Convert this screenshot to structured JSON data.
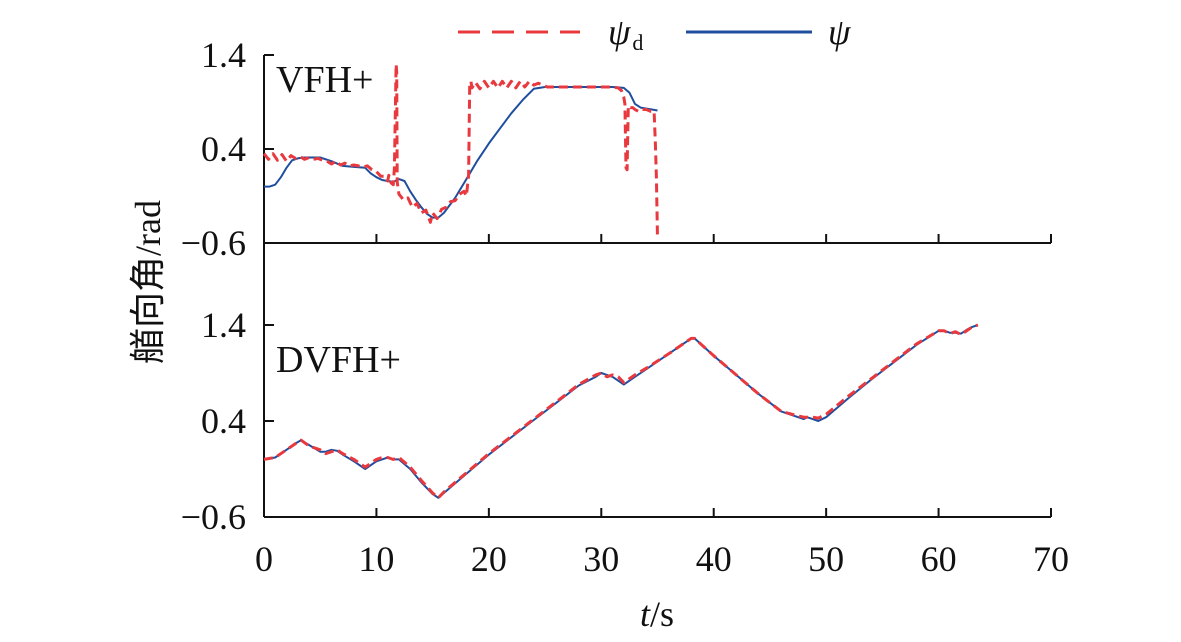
{
  "chart_data": [
    {
      "type": "line",
      "panel_label": "VFH+",
      "xlim": [
        0,
        70
      ],
      "ylim": [
        -0.6,
        1.4
      ],
      "yticks": [
        1.4,
        0.4,
        -0.6
      ],
      "ytick_labels": [
        "1.4",
        "0.4",
        "−0.6"
      ],
      "series": [
        {
          "name": "ψd",
          "style": "dashed",
          "color": "#e8393f",
          "x": [
            0,
            0.4,
            0.8,
            1.2,
            1.6,
            2.0,
            2.4,
            2.8,
            3.2,
            3.6,
            4.0,
            4.4,
            4.8,
            5.2,
            5.6,
            6.0,
            6.4,
            6.8,
            7.2,
            7.6,
            8.0,
            8.4,
            8.8,
            9.2,
            9.6,
            10.0,
            10.4,
            10.8,
            11.0,
            11.1,
            11.3,
            11.5,
            11.6,
            11.7,
            11.75,
            11.8,
            11.85,
            12.0,
            12.4,
            12.8,
            13.2,
            13.6,
            14.0,
            14.4,
            14.8,
            15.0,
            15.4,
            15.8,
            16.2,
            16.6,
            17.0,
            17.4,
            17.8,
            18.0,
            18.2,
            18.3,
            18.4,
            18.5,
            18.8,
            19.2,
            19.6,
            20.0,
            20.4,
            20.8,
            21.2,
            21.6,
            22.0,
            22.4,
            22.8,
            23.2,
            23.6,
            24.0,
            24.4,
            24.8,
            25.2,
            26,
            27,
            28,
            29,
            30,
            31,
            31.5,
            31.8,
            32.0,
            32.1,
            32.2,
            32.3,
            32.4,
            32.6,
            32.8,
            33.0,
            33.3,
            33.6,
            34.0,
            34.4,
            34.7,
            34.8,
            34.9,
            35.0
          ],
          "y": [
            0.35,
            0.29,
            0.35,
            0.28,
            0.34,
            0.27,
            0.33,
            0.3,
            0.32,
            0.29,
            0.31,
            0.29,
            0.3,
            0.28,
            0.27,
            0.24,
            0.27,
            0.23,
            0.25,
            0.22,
            0.23,
            0.22,
            0.21,
            0.22,
            0.18,
            0.16,
            0.11,
            0.11,
            0.06,
            0.12,
            0.04,
            0.02,
            0.2,
            0.9,
            1.3,
            1.22,
            0.05,
            -0.08,
            -0.14,
            -0.12,
            -0.22,
            -0.18,
            -0.28,
            -0.25,
            -0.38,
            -0.28,
            -0.34,
            -0.24,
            -0.22,
            -0.16,
            -0.15,
            -0.08,
            -0.05,
            -0.1,
            0.12,
            1.08,
            1.12,
            1.05,
            1.11,
            1.04,
            1.12,
            1.05,
            1.12,
            1.05,
            1.12,
            1.05,
            1.12,
            1.05,
            1.12,
            1.06,
            1.12,
            1.08,
            1.1,
            1.08,
            1.06,
            1.06,
            1.06,
            1.06,
            1.06,
            1.06,
            1.06,
            1.05,
            1.02,
            0.95,
            0.88,
            0.2,
            0.18,
            0.86,
            0.84,
            0.84,
            0.82,
            0.8,
            0.82,
            0.82,
            0.8,
            0.8,
            0.48,
            0.1,
            -0.55
          ]
        },
        {
          "name": "ψ",
          "style": "solid",
          "color": "#1f4e9f",
          "x": [
            0,
            0.5,
            1.0,
            1.5,
            2.0,
            2.5,
            3.0,
            3.5,
            4.0,
            5.0,
            6.0,
            7.0,
            8.0,
            9.0,
            9.5,
            10.0,
            10.5,
            11.0,
            11.5,
            12.0,
            12.5,
            13.0,
            13.5,
            14.0,
            14.5,
            15.0,
            15.5,
            16.0,
            17.0,
            18.0,
            19.0,
            20.0,
            21.0,
            22.0,
            23.0,
            24.0,
            25.0,
            26.0,
            27.0,
            28.0,
            29.0,
            30.0,
            31.0,
            32.0,
            32.5,
            33.0,
            33.5,
            34.0,
            34.5,
            35.0
          ],
          "y": [
            0.0,
            0.0,
            0.02,
            0.1,
            0.2,
            0.28,
            0.3,
            0.31,
            0.31,
            0.31,
            0.27,
            0.22,
            0.21,
            0.2,
            0.14,
            0.1,
            0.07,
            0.06,
            0.05,
            0.08,
            0.06,
            -0.05,
            -0.14,
            -0.22,
            -0.29,
            -0.33,
            -0.33,
            -0.28,
            -0.12,
            0.08,
            0.28,
            0.46,
            0.62,
            0.78,
            0.92,
            1.04,
            1.06,
            1.06,
            1.06,
            1.06,
            1.06,
            1.06,
            1.06,
            1.05,
            1.0,
            0.88,
            0.84,
            0.83,
            0.82,
            0.81
          ]
        }
      ]
    },
    {
      "type": "line",
      "panel_label": "DVFH+",
      "xlabel": "t/s",
      "xlim": [
        0,
        70
      ],
      "ylim": [
        -0.6,
        1.4
      ],
      "xticks": [
        0,
        10,
        20,
        30,
        40,
        50,
        60,
        70
      ],
      "yticks": [
        1.4,
        0.4,
        -0.6
      ],
      "ytick_labels": [
        "1.4",
        "0.4",
        "−0.6"
      ],
      "series": [
        {
          "name": "ψd",
          "style": "dashed",
          "color": "#e8393f",
          "x": [
            0,
            1,
            2,
            3,
            3.3,
            4,
            5,
            5.5,
            6,
            6.5,
            7,
            8,
            9,
            10,
            10.5,
            11,
            11.5,
            12,
            13,
            14,
            15,
            15.5,
            16,
            18,
            20,
            22,
            24,
            26,
            28,
            29.5,
            30,
            30.5,
            31,
            31.5,
            32,
            33,
            34,
            36,
            38,
            38.3,
            40,
            42,
            44,
            46,
            48,
            48.3,
            48.8,
            49.3,
            50,
            52,
            54,
            56,
            58,
            60,
            60.5,
            61,
            61.5,
            62,
            62.5,
            63,
            63.5
          ],
          "y": [
            0.0,
            0.02,
            0.1,
            0.18,
            0.2,
            0.14,
            0.1,
            0.06,
            0.08,
            0.1,
            0.06,
            0.0,
            -0.08,
            0.0,
            0.02,
            0.02,
            0.0,
            0.02,
            -0.08,
            -0.22,
            -0.35,
            -0.4,
            -0.34,
            -0.14,
            0.06,
            0.24,
            0.42,
            0.6,
            0.78,
            0.88,
            0.9,
            0.86,
            0.88,
            0.86,
            0.8,
            0.88,
            0.95,
            1.1,
            1.26,
            1.26,
            1.08,
            0.88,
            0.68,
            0.5,
            0.44,
            0.44,
            0.44,
            0.43,
            0.47,
            0.66,
            0.84,
            1.02,
            1.2,
            1.34,
            1.34,
            1.31,
            1.33,
            1.3,
            1.34,
            1.38,
            1.4
          ]
        },
        {
          "name": "ψ",
          "style": "solid",
          "color": "#1f4e9f",
          "x": [
            0,
            1,
            2,
            3,
            3.3,
            4,
            5,
            5.5,
            6,
            6.5,
            7,
            8,
            9,
            10,
            10.5,
            11,
            11.5,
            12,
            13,
            14,
            15,
            15.5,
            16,
            18,
            20,
            22,
            24,
            26,
            28,
            29.5,
            30,
            30.5,
            31,
            31.5,
            32,
            33,
            34,
            36,
            38,
            38.3,
            40,
            42,
            44,
            46,
            48,
            48.3,
            48.8,
            49.3,
            50,
            52,
            54,
            56,
            58,
            60,
            60.5,
            61,
            61.5,
            62,
            62.5,
            63,
            63.5
          ],
          "y": [
            0.0,
            0.02,
            0.1,
            0.18,
            0.2,
            0.15,
            0.08,
            0.08,
            0.1,
            0.09,
            0.05,
            -0.02,
            -0.1,
            -0.02,
            0.0,
            0.02,
            0.0,
            0.0,
            -0.1,
            -0.24,
            -0.36,
            -0.4,
            -0.35,
            -0.15,
            0.05,
            0.23,
            0.41,
            0.59,
            0.77,
            0.86,
            0.9,
            0.88,
            0.86,
            0.82,
            0.78,
            0.86,
            0.94,
            1.1,
            1.26,
            1.26,
            1.08,
            0.88,
            0.68,
            0.5,
            0.42,
            0.44,
            0.42,
            0.4,
            0.44,
            0.64,
            0.83,
            1.01,
            1.19,
            1.34,
            1.34,
            1.32,
            1.32,
            1.31,
            1.35,
            1.38,
            1.4
          ]
        }
      ]
    }
  ],
  "figure": {
    "ylabel": "艏向角/rad",
    "xlabel_italic": "t",
    "xlabel_rest": "/s",
    "xtick_labels": [
      "0",
      "10",
      "20",
      "30",
      "40",
      "50",
      "60",
      "70"
    ],
    "legend": {
      "placement": "top",
      "items": [
        {
          "symbol": "ψ",
          "subscript": "d",
          "style": "dashed",
          "color": "#e8393f"
        },
        {
          "symbol": "ψ",
          "subscript": "",
          "style": "solid",
          "color": "#1f4e9f"
        }
      ]
    }
  }
}
